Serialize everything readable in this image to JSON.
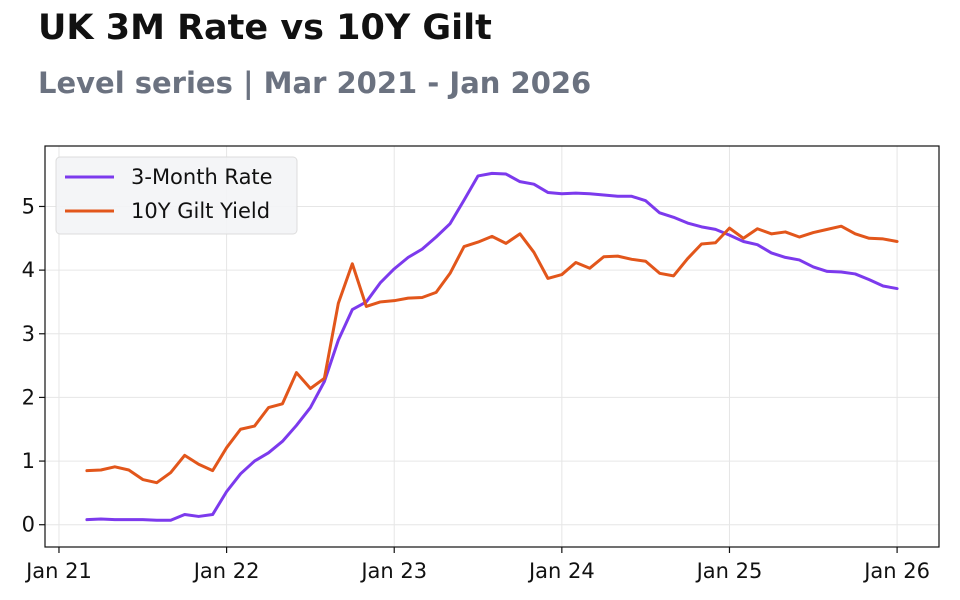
{
  "header": {
    "title": "UK 3M Rate vs 10Y Gilt",
    "subtitle": "Level series | Mar 2021 - Jan 2026"
  },
  "chart_data": {
    "type": "line",
    "title": "UK 3M Rate vs 10Y Gilt",
    "subtitle": "Level series | Mar 2021 - Jan 2026",
    "xlabel": "",
    "ylabel": "",
    "x_start": "2021-03",
    "x_end": "2026-01",
    "x": [
      "2021-03",
      "2021-04",
      "2021-05",
      "2021-06",
      "2021-07",
      "2021-08",
      "2021-09",
      "2021-10",
      "2021-11",
      "2021-12",
      "2022-01",
      "2022-02",
      "2022-03",
      "2022-04",
      "2022-05",
      "2022-06",
      "2022-07",
      "2022-08",
      "2022-09",
      "2022-10",
      "2022-11",
      "2022-12",
      "2023-01",
      "2023-02",
      "2023-03",
      "2023-04",
      "2023-05",
      "2023-06",
      "2023-07",
      "2023-08",
      "2023-09",
      "2023-10",
      "2023-11",
      "2023-12",
      "2024-01",
      "2024-02",
      "2024-03",
      "2024-04",
      "2024-05",
      "2024-06",
      "2024-07",
      "2024-08",
      "2024-09",
      "2024-10",
      "2024-11",
      "2024-12",
      "2025-01",
      "2025-02",
      "2025-03",
      "2025-04",
      "2025-05",
      "2025-06",
      "2025-07",
      "2025-08",
      "2025-09",
      "2025-10",
      "2025-11",
      "2025-12",
      "2026-01"
    ],
    "x_ticks": [
      {
        "value": "2021-01",
        "label": "Jan 21"
      },
      {
        "value": "2022-01",
        "label": "Jan 22"
      },
      {
        "value": "2023-01",
        "label": "Jan 23"
      },
      {
        "value": "2024-01",
        "label": "Jan 24"
      },
      {
        "value": "2025-01",
        "label": "Jan 25"
      },
      {
        "value": "2026-01",
        "label": "Jan 26"
      }
    ],
    "y_ticks": [
      0,
      1,
      2,
      3,
      4,
      5
    ],
    "xlim": [
      "2020-12",
      "2026-04"
    ],
    "ylim": [
      -0.35,
      5.95
    ],
    "grid": true,
    "legend_position": "top-left",
    "series": [
      {
        "name": "3-Month Rate",
        "color": "#7c3aed",
        "values": [
          0.08,
          0.09,
          0.08,
          0.08,
          0.08,
          0.07,
          0.07,
          0.16,
          0.13,
          0.16,
          0.52,
          0.8,
          1.0,
          1.13,
          1.31,
          1.56,
          1.84,
          2.25,
          2.9,
          3.38,
          3.5,
          3.8,
          4.02,
          4.2,
          4.33,
          4.52,
          4.73,
          5.1,
          5.48,
          5.52,
          5.51,
          5.39,
          5.35,
          5.22,
          5.2,
          5.21,
          5.2,
          5.18,
          5.16,
          5.16,
          5.09,
          4.9,
          4.83,
          4.74,
          4.68,
          4.64,
          4.55,
          4.45,
          4.4,
          4.27,
          4.2,
          4.16,
          4.05,
          3.98,
          3.97,
          3.94,
          3.85,
          3.75,
          3.71
        ]
      },
      {
        "name": "10Y Gilt Yield",
        "color": "#e2561b",
        "values": [
          0.85,
          0.86,
          0.91,
          0.86,
          0.71,
          0.66,
          0.82,
          1.09,
          0.95,
          0.85,
          1.21,
          1.5,
          1.55,
          1.84,
          1.9,
          2.39,
          2.14,
          2.3,
          3.48,
          4.1,
          3.43,
          3.5,
          3.52,
          3.56,
          3.57,
          3.65,
          3.95,
          4.37,
          4.44,
          4.53,
          4.42,
          4.57,
          4.28,
          3.87,
          3.93,
          4.12,
          4.03,
          4.21,
          4.22,
          4.17,
          4.14,
          3.95,
          3.91,
          4.18,
          4.41,
          4.43,
          4.66,
          4.5,
          4.65,
          4.57,
          4.6,
          4.52,
          4.59,
          4.64,
          4.69,
          4.57,
          4.5,
          4.49,
          4.45
        ]
      }
    ]
  }
}
